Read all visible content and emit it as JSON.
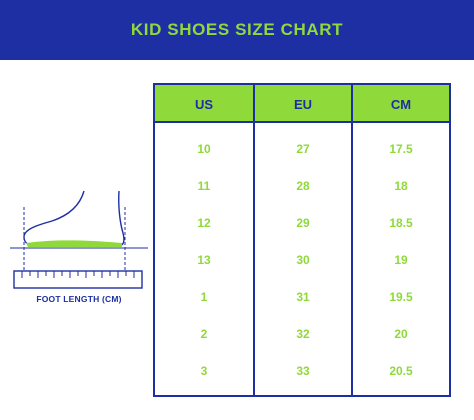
{
  "header": {
    "title": "KID SHOES SIZE CHART"
  },
  "illustration": {
    "caption": "FOOT LENGTH (CM)"
  },
  "colors": {
    "navy": "#1e2fa3",
    "green": "#8fd93a",
    "background": "#ffffff"
  },
  "table": {
    "columns": [
      "US",
      "EU",
      "CM"
    ],
    "rows": [
      [
        "10",
        "27",
        "17.5"
      ],
      [
        "11",
        "28",
        "18"
      ],
      [
        "12",
        "29",
        "18.5"
      ],
      [
        "13",
        "30",
        "19"
      ],
      [
        "1",
        "31",
        "19.5"
      ],
      [
        "2",
        "32",
        "20"
      ],
      [
        "3",
        "33",
        "20.5"
      ]
    ]
  }
}
